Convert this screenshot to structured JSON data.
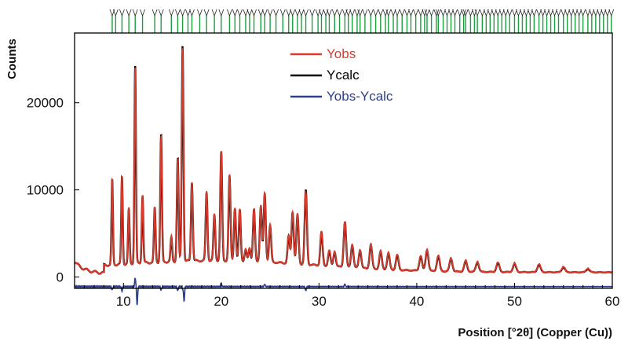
{
  "chart_data": {
    "type": "line",
    "title": "",
    "xlabel": "Position [°2θ] (Copper (Cu))",
    "ylabel": "Counts",
    "xlim": [
      5,
      60
    ],
    "ylim": [
      -1300,
      28000
    ],
    "x_ticks": [
      10,
      20,
      30,
      40,
      50,
      60
    ],
    "y_ticks": [
      0,
      10000,
      20000
    ],
    "x_tick_labels": [
      "10",
      "20",
      "30",
      "40",
      "50",
      "60"
    ],
    "y_tick_labels": [
      "0",
      "10000",
      "20000"
    ],
    "grid": false,
    "legend_position": "top-center",
    "legend": [
      {
        "name": "Yobs",
        "color": "#d93a2b"
      },
      {
        "name": "Ycalc",
        "color": "#000000"
      },
      {
        "name": "Yobs-Ycalc",
        "color": "#2b3f8c"
      }
    ],
    "colors": {
      "yobs": "#d93a2b",
      "ycalc": "#000000",
      "diff": "#2b3f8c",
      "reflection_ticks": "#1e9e3e"
    },
    "series": [
      {
        "name": "Yobs",
        "peaks": [
          [
            8.85,
            11200
          ],
          [
            9.85,
            11600
          ],
          [
            10.55,
            7800
          ],
          [
            11.2,
            24000
          ],
          [
            11.95,
            9400
          ],
          [
            13.2,
            8000
          ],
          [
            13.85,
            16200
          ],
          [
            14.9,
            4600
          ],
          [
            15.55,
            13500
          ],
          [
            16.05,
            26400
          ],
          [
            17.0,
            11000
          ],
          [
            18.5,
            9800
          ],
          [
            19.3,
            7200
          ],
          [
            20.0,
            14400
          ],
          [
            20.85,
            11600
          ],
          [
            21.4,
            8000
          ],
          [
            21.9,
            7800
          ],
          [
            22.5,
            3200
          ],
          [
            22.9,
            3400
          ],
          [
            23.35,
            7800
          ],
          [
            24.05,
            8200
          ],
          [
            24.45,
            9600
          ],
          [
            25.0,
            6000
          ],
          [
            26.9,
            4800
          ],
          [
            27.3,
            7600
          ],
          [
            27.8,
            7200
          ],
          [
            28.65,
            9700
          ],
          [
            30.25,
            5200
          ],
          [
            31.05,
            3100
          ],
          [
            31.6,
            3000
          ],
          [
            32.65,
            6400
          ],
          [
            33.4,
            3800
          ],
          [
            34.2,
            3200
          ],
          [
            35.3,
            3800
          ],
          [
            36.3,
            3000
          ],
          [
            37.1,
            2800
          ],
          [
            38.0,
            2600
          ],
          [
            40.4,
            2500
          ],
          [
            41.05,
            3200
          ],
          [
            42.2,
            2500
          ],
          [
            43.5,
            2200
          ],
          [
            45.0,
            1900
          ],
          [
            46.2,
            1800
          ],
          [
            48.3,
            1700
          ],
          [
            50.0,
            1600
          ],
          [
            52.5,
            1500
          ],
          [
            55.0,
            1200
          ],
          [
            57.5,
            1000
          ]
        ]
      },
      {
        "name": "Ycalc",
        "peaks": [
          [
            8.85,
            11100
          ],
          [
            9.85,
            11500
          ],
          [
            10.55,
            7700
          ],
          [
            11.2,
            24200
          ],
          [
            11.95,
            9300
          ],
          [
            13.2,
            7900
          ],
          [
            13.85,
            16300
          ],
          [
            14.9,
            4500
          ],
          [
            15.55,
            13600
          ],
          [
            16.05,
            26600
          ],
          [
            17.0,
            10900
          ],
          [
            18.5,
            9700
          ],
          [
            19.3,
            7100
          ],
          [
            20.0,
            14300
          ],
          [
            20.85,
            11500
          ],
          [
            21.4,
            7900
          ],
          [
            21.9,
            7700
          ],
          [
            22.5,
            3100
          ],
          [
            22.9,
            3300
          ],
          [
            23.35,
            7700
          ],
          [
            24.05,
            8100
          ],
          [
            24.45,
            9500
          ],
          [
            25.0,
            5900
          ],
          [
            26.9,
            4700
          ],
          [
            27.3,
            7500
          ],
          [
            27.8,
            7100
          ],
          [
            28.65,
            9900
          ],
          [
            30.25,
            5100
          ],
          [
            31.05,
            3000
          ],
          [
            31.6,
            2900
          ],
          [
            32.65,
            6300
          ],
          [
            33.4,
            3700
          ],
          [
            34.2,
            3100
          ],
          [
            35.3,
            3700
          ],
          [
            36.3,
            2900
          ],
          [
            37.1,
            2700
          ],
          [
            38.0,
            2500
          ],
          [
            40.4,
            2400
          ],
          [
            41.05,
            3100
          ],
          [
            42.2,
            2400
          ],
          [
            43.5,
            2100
          ],
          [
            45.0,
            1800
          ],
          [
            46.2,
            1700
          ],
          [
            48.3,
            1600
          ],
          [
            50.0,
            1500
          ],
          [
            52.5,
            1400
          ],
          [
            55.0,
            1100
          ],
          [
            57.5,
            900
          ]
        ]
      },
      {
        "name": "Yobs-Ycalc",
        "baseline": -1100,
        "features": [
          [
            8.85,
            -400
          ],
          [
            9.85,
            -500
          ],
          [
            11.2,
            1000
          ],
          [
            11.4,
            -2100
          ],
          [
            13.85,
            -400
          ],
          [
            15.55,
            -500
          ],
          [
            16.05,
            -300
          ],
          [
            16.2,
            -1700
          ],
          [
            20.0,
            400
          ],
          [
            24.45,
            300
          ],
          [
            28.65,
            -500
          ],
          [
            32.65,
            300
          ]
        ]
      }
    ],
    "reflection_positions": [
      8.85,
      9.2,
      9.85,
      10.55,
      11.2,
      11.95,
      13.2,
      13.85,
      14.9,
      15.55,
      16.05,
      16.6,
      17.0,
      17.8,
      18.5,
      19.3,
      20.0,
      20.85,
      21.4,
      21.9,
      22.5,
      22.9,
      23.35,
      24.05,
      24.45,
      25.0,
      25.6,
      26.3,
      26.9,
      27.3,
      27.8,
      28.2,
      28.65,
      29.3,
      29.9,
      30.25,
      30.7,
      31.05,
      31.6,
      32.1,
      32.65,
      33.0,
      33.4,
      33.9,
      34.2,
      34.7,
      35.3,
      35.8,
      36.3,
      36.8,
      37.1,
      37.6,
      38.0,
      38.5,
      39.0,
      39.4,
      39.9,
      40.4,
      40.8,
      41.05,
      41.5,
      42.0,
      42.2,
      42.7,
      43.1,
      43.5,
      43.9,
      44.4,
      44.8,
      45.0,
      45.5,
      45.9,
      46.2,
      46.7,
      47.1,
      47.5,
      47.9,
      48.3,
      48.7,
      49.1,
      49.5,
      50.0,
      50.4,
      50.8,
      51.2,
      51.6,
      52.0,
      52.5,
      52.9,
      53.3,
      53.7,
      54.1,
      54.5,
      55.0,
      55.4,
      55.8,
      56.2,
      56.6,
      57.0,
      57.5,
      57.9,
      58.3,
      58.7,
      59.1,
      59.5,
      59.9
    ]
  }
}
